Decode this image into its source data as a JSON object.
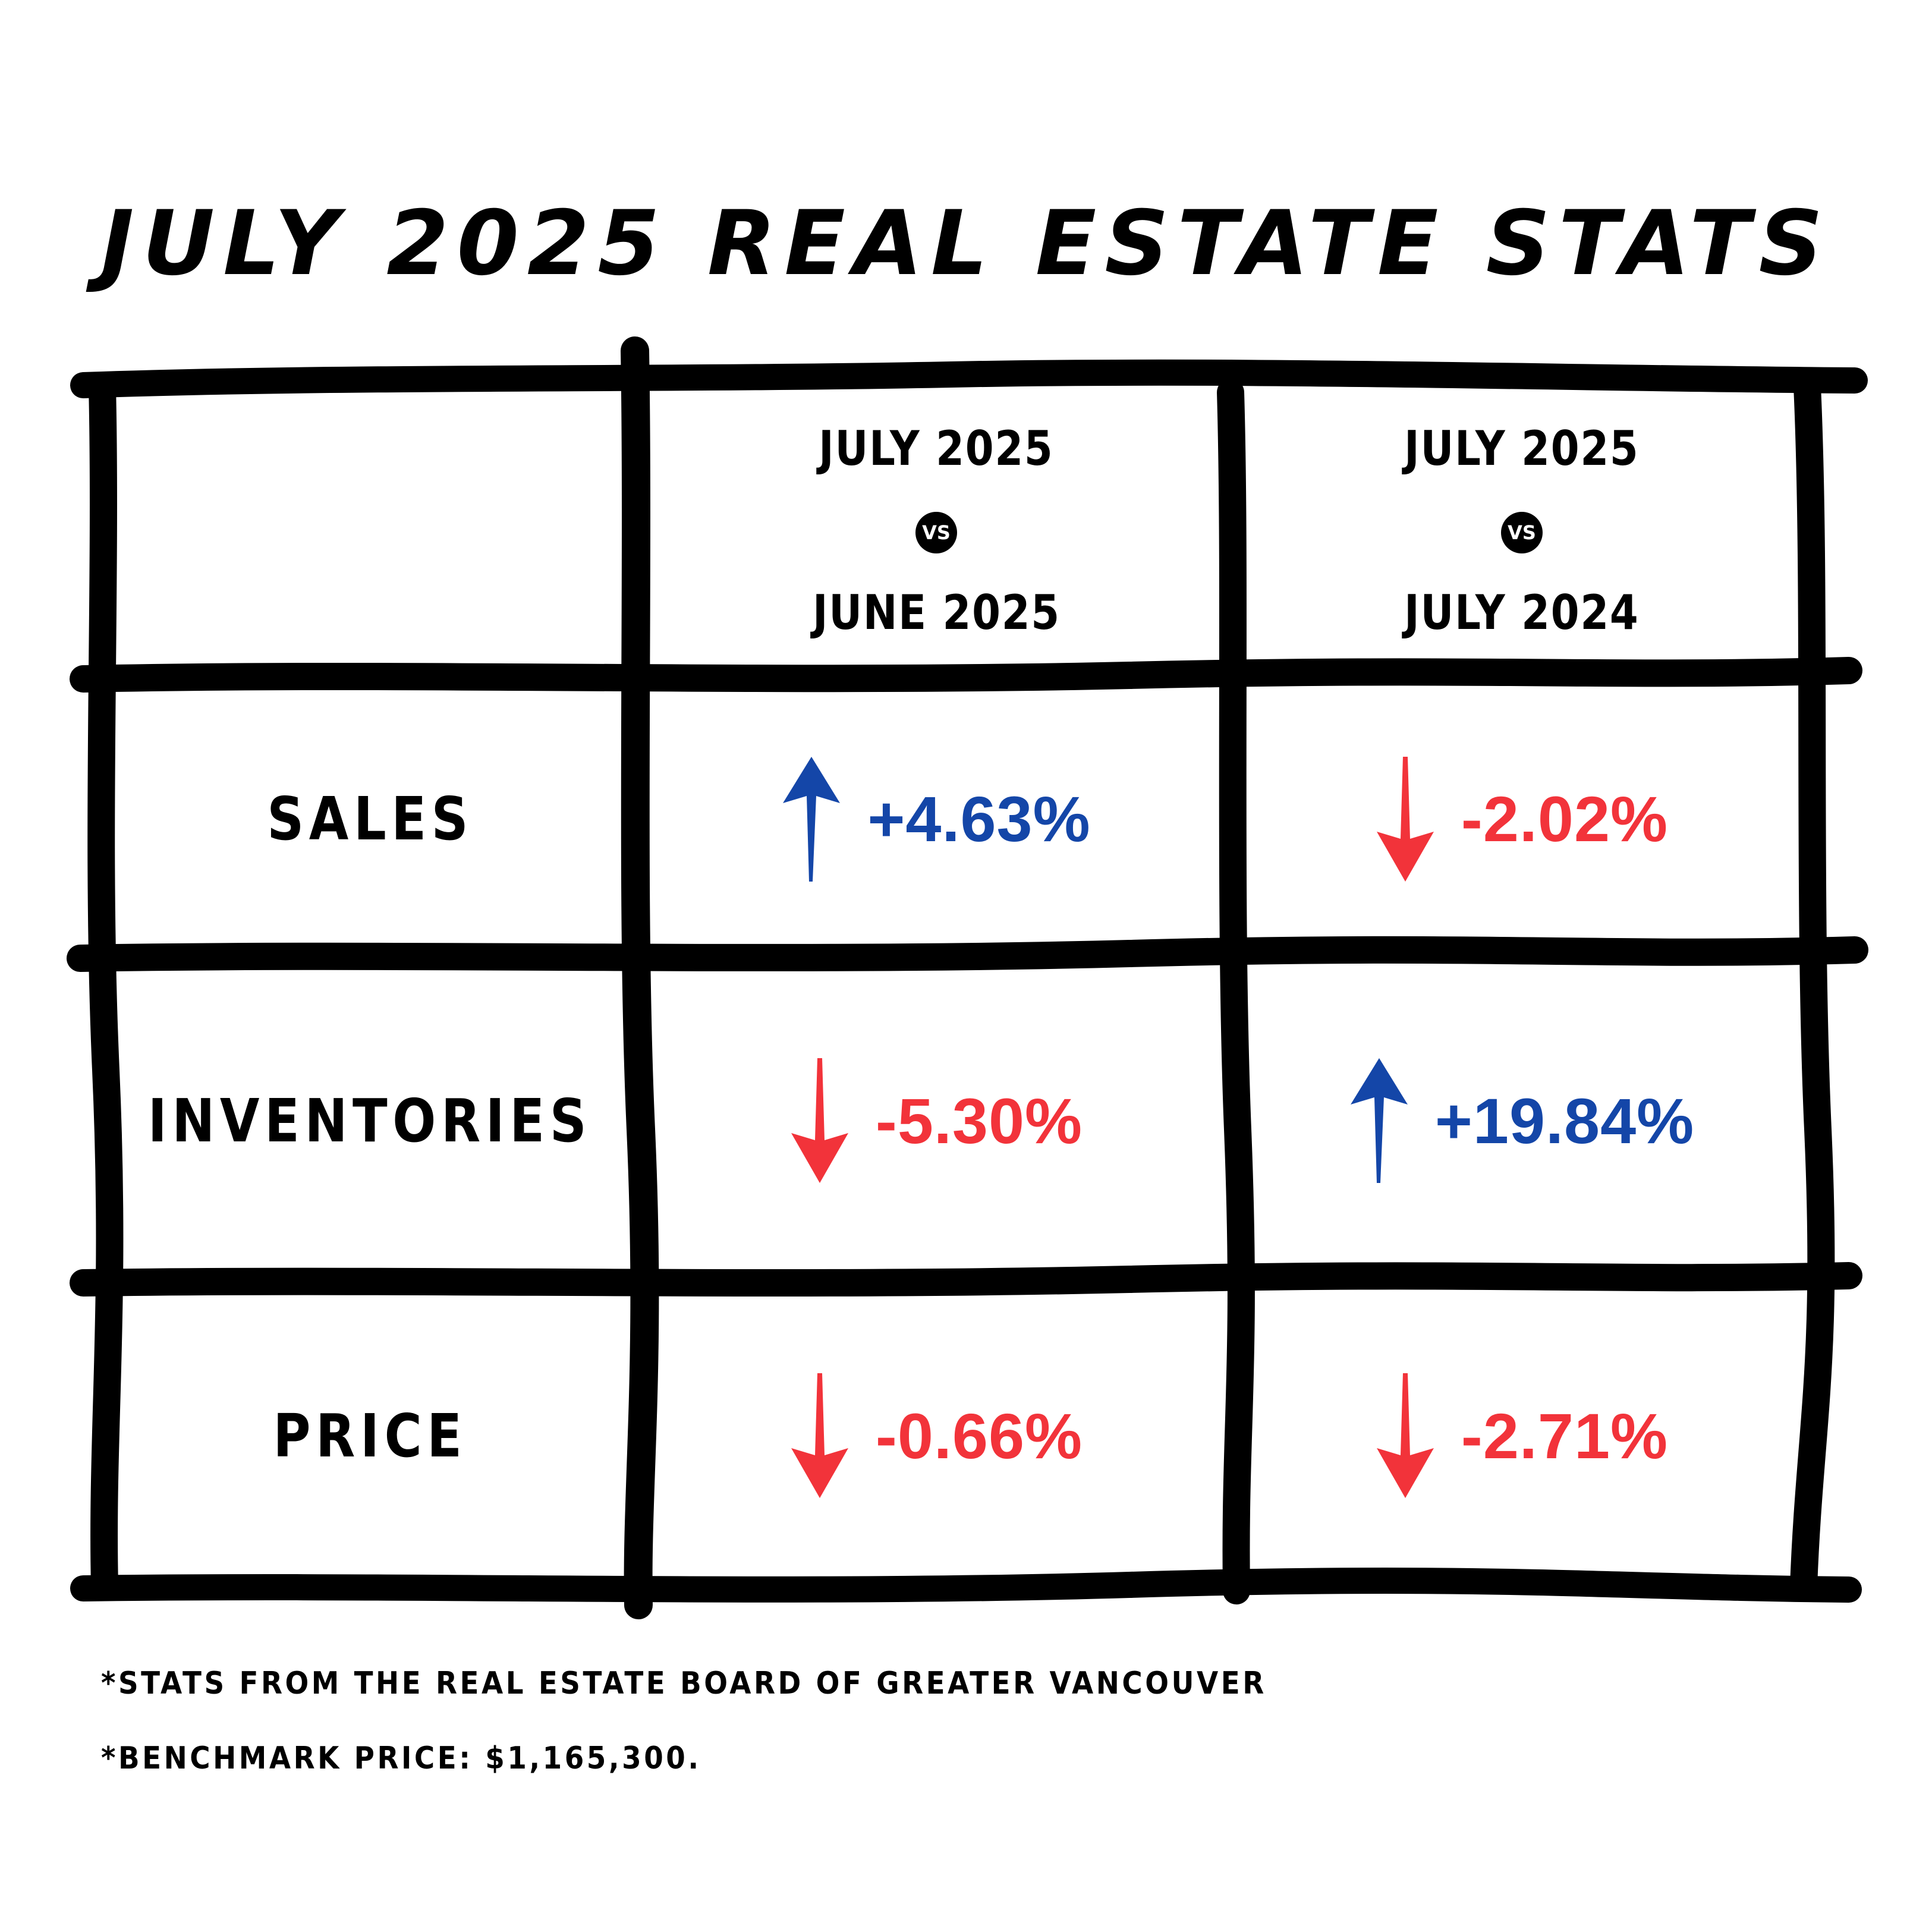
{
  "title": "JULY 2025 REAL ESTATE STATS",
  "colors": {
    "increase": "#1446a8",
    "decrease": "#f2333a",
    "ink": "#000000"
  },
  "table": {
    "headers": [
      {
        "top": "JULY 2025",
        "vs": "VS",
        "bottom": "JUNE 2025"
      },
      {
        "top": "JULY 2025",
        "vs": "VS",
        "bottom": "JULY 2024"
      }
    ],
    "rows": [
      {
        "label": "SALES",
        "values": [
          {
            "text": "+4.63%",
            "direction": "up",
            "icon": "arrow-up-icon"
          },
          {
            "text": "-2.02%",
            "direction": "down",
            "icon": "arrow-down-icon"
          }
        ]
      },
      {
        "label": "INVENTORIES",
        "values": [
          {
            "text": "-5.30%",
            "direction": "down",
            "icon": "arrow-down-icon"
          },
          {
            "text": "+19.84%",
            "direction": "up",
            "icon": "arrow-up-icon"
          }
        ]
      },
      {
        "label": "PRICE",
        "values": [
          {
            "text": "-0.66%",
            "direction": "down",
            "icon": "arrow-down-icon"
          },
          {
            "text": "-2.71%",
            "direction": "down",
            "icon": "arrow-down-icon"
          }
        ]
      }
    ]
  },
  "footnotes": {
    "source": "*STATS FROM THE REAL ESTATE BOARD OF GREATER VANCOUVER",
    "benchmark": "*BENCHMARK PRICE: $1,165,300."
  }
}
